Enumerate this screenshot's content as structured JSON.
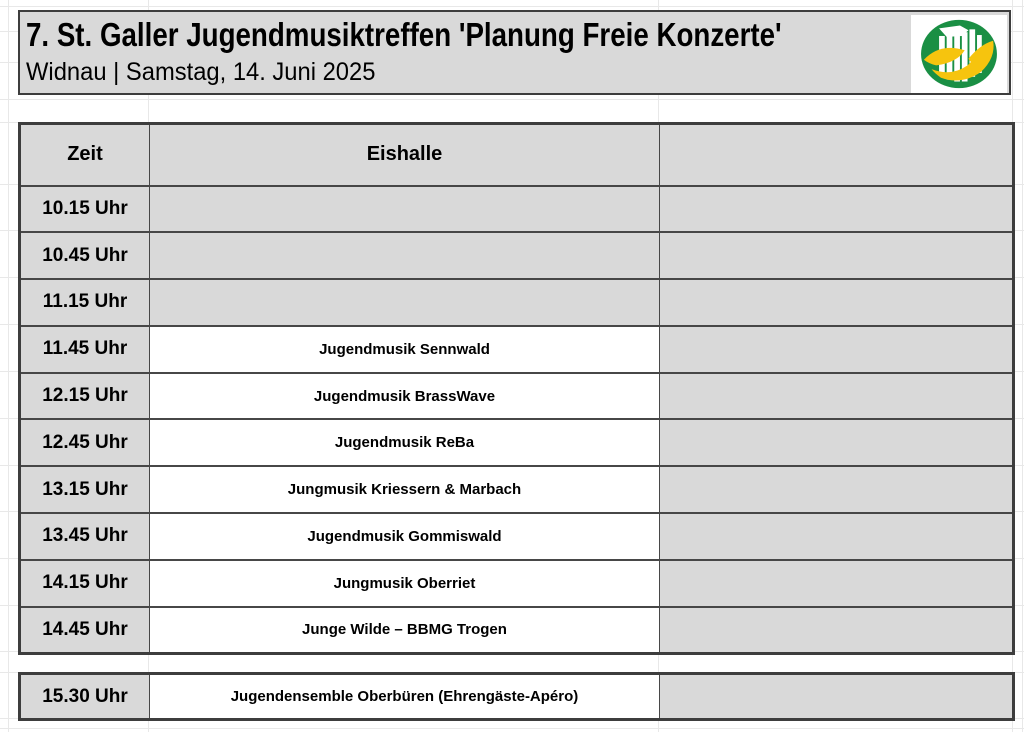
{
  "header": {
    "title": "7. St. Galler Jugendmusiktreffen 'Planung Freie Konzerte'",
    "subtitle": "Widnau | Samstag, 14. Juni 2025"
  },
  "icons": {
    "logo": "panpipes-ribbon-association-logo"
  },
  "table": {
    "columns": {
      "time": "Zeit",
      "venue": "Eishalle",
      "extra": ""
    },
    "rows": [
      {
        "time": "10.15 Uhr",
        "act": ""
      },
      {
        "time": "10.45 Uhr",
        "act": ""
      },
      {
        "time": "11.15 Uhr",
        "act": ""
      },
      {
        "time": "11.45 Uhr",
        "act": "Jugendmusik Sennwald"
      },
      {
        "time": "12.15 Uhr",
        "act": "Jugendmusik BrassWave"
      },
      {
        "time": "12.45 Uhr",
        "act": "Jugendmusik ReBa"
      },
      {
        "time": "13.15 Uhr",
        "act": "Jungmusik Kriessern & Marbach"
      },
      {
        "time": "13.45 Uhr",
        "act": "Jugendmusik Gommiswald"
      },
      {
        "time": "14.15 Uhr",
        "act": "Jungmusik Oberriet"
      },
      {
        "time": "14.45 Uhr",
        "act": "Junge Wilde – BBMG Trogen"
      }
    ],
    "apero_row": {
      "time": "15.30 Uhr",
      "act": "Jugendensemble Oberbüren (Ehrengäste-Apéro)"
    }
  },
  "colors": {
    "cell_gray": "#d9d9d9",
    "border": "#474747",
    "gridline": "#e8e8e8",
    "logo_green": "#1a8f44",
    "logo_yellow": "#f6c40e"
  }
}
